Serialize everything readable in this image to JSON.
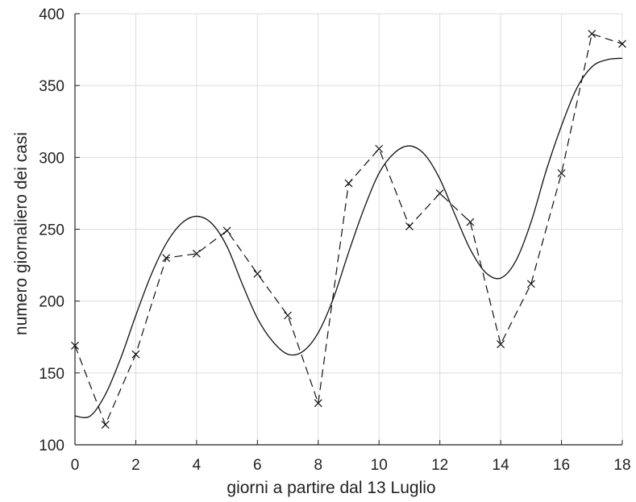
{
  "chart_data": {
    "type": "line",
    "title": "",
    "xlabel": "giorni a partire dal 13 Luglio",
    "ylabel": "numero giornaliero dei casi",
    "xlim": [
      0,
      18
    ],
    "ylim": [
      100,
      400
    ],
    "xticks": [
      0,
      2,
      4,
      6,
      8,
      10,
      12,
      14,
      16,
      18
    ],
    "yticks": [
      100,
      150,
      200,
      250,
      300,
      350,
      400
    ],
    "grid": true,
    "legend": "none",
    "colors": {
      "data": "#111111",
      "fit": "#111111",
      "grid": "#dcdcdc",
      "axis": "#222222"
    },
    "series": [
      {
        "style": "dashed-with-x-markers",
        "x": [
          0,
          1,
          2,
          3,
          4,
          5,
          6,
          7,
          8,
          9,
          10,
          11,
          12,
          13,
          14,
          15,
          16,
          17,
          18
        ],
        "y": [
          169,
          114,
          163,
          230,
          233,
          249,
          219,
          190,
          129,
          282,
          306,
          252,
          275,
          255,
          170,
          212,
          289,
          386,
          379
        ]
      },
      {
        "style": "solid",
        "x": [
          0,
          0.5,
          1,
          1.5,
          2,
          2.5,
          3,
          3.5,
          4,
          4.5,
          5,
          5.5,
          6,
          6.5,
          7,
          7.5,
          8,
          8.5,
          9,
          9.5,
          10,
          10.5,
          11,
          11.5,
          12,
          12.5,
          13,
          13.5,
          14,
          14.5,
          15,
          15.5,
          16,
          16.5,
          17,
          17.5,
          18
        ],
        "y": [
          120,
          120,
          135,
          160,
          190,
          218,
          240,
          254,
          259,
          254,
          238,
          212,
          188,
          172,
          163,
          165,
          178,
          202,
          234,
          264,
          289,
          303,
          308,
          302,
          285,
          260,
          236,
          220,
          216,
          228,
          255,
          291,
          322,
          348,
          363,
          368,
          369
        ]
      }
    ]
  }
}
